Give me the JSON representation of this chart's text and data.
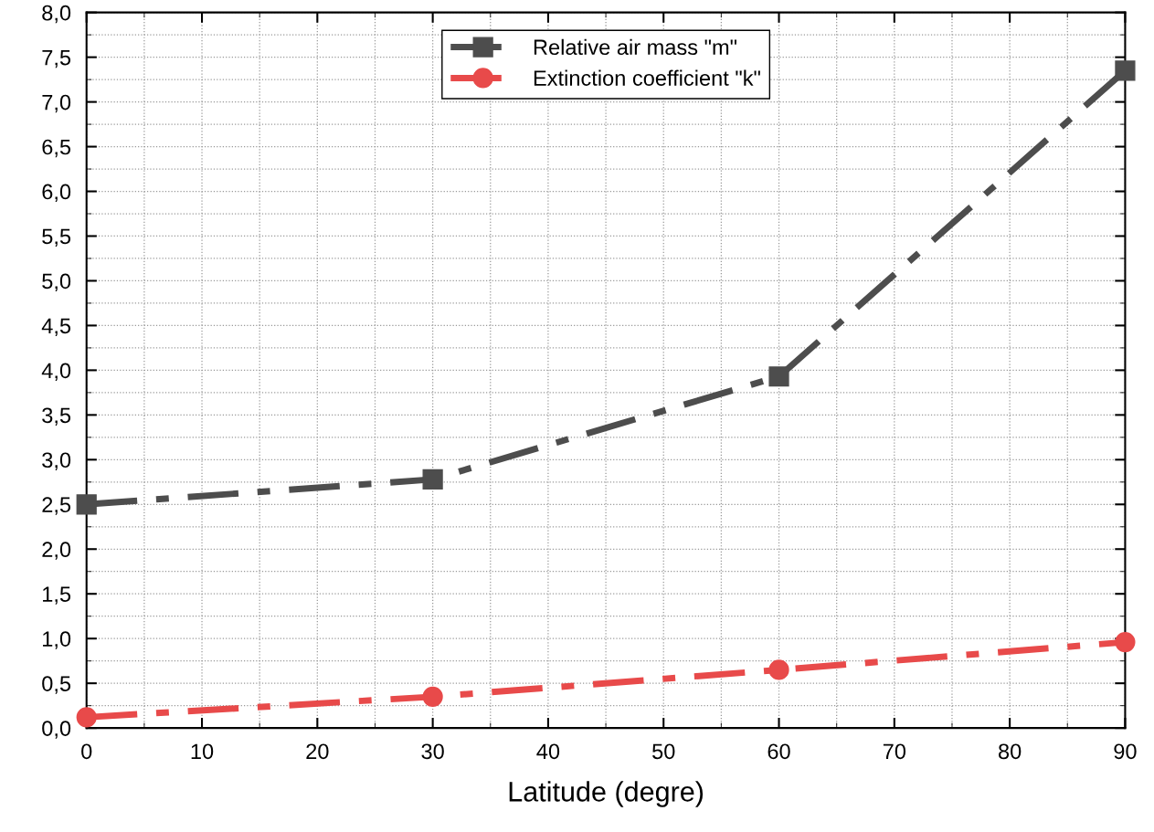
{
  "chart_data": {
    "type": "line",
    "xlabel": "Latitude (degre)",
    "x": [
      0,
      30,
      60,
      90
    ],
    "series": [
      {
        "name": "Relative air mass \"m\"",
        "color": "#4d4d4d",
        "marker": "square",
        "values": [
          2.5,
          2.78,
          3.93,
          7.35
        ]
      },
      {
        "name": "Extinction coefficient \"k\"",
        "color": "#e84a4a",
        "marker": "circle",
        "values": [
          0.12,
          0.35,
          0.65,
          0.96
        ]
      }
    ],
    "xlim": [
      0,
      90
    ],
    "xticks": [
      0,
      10,
      20,
      30,
      40,
      50,
      60,
      70,
      80,
      90
    ],
    "ylim": [
      0,
      8
    ],
    "yticks": [
      {
        "value": 0,
        "label": "0,0"
      },
      {
        "value": 0.5,
        "label": "0,5"
      },
      {
        "value": 1,
        "label": "1,0"
      },
      {
        "value": 1.5,
        "label": "1,5"
      },
      {
        "value": 2,
        "label": "2,0"
      },
      {
        "value": 2.5,
        "label": "2,5"
      },
      {
        "value": 3,
        "label": "3,0"
      },
      {
        "value": 3.5,
        "label": "3,5"
      },
      {
        "value": 4,
        "label": "4,0"
      },
      {
        "value": 4.5,
        "label": "4,5"
      },
      {
        "value": 5,
        "label": "5,0"
      },
      {
        "value": 5.5,
        "label": "5,5"
      },
      {
        "value": 6,
        "label": "6,0"
      },
      {
        "value": 6.5,
        "label": "6,5"
      },
      {
        "value": 7,
        "label": "7,0"
      },
      {
        "value": 7.5,
        "label": "7,5"
      },
      {
        "value": 8,
        "label": "8,0"
      }
    ],
    "grid": true,
    "legend": "top",
    "line_style": "dashed"
  }
}
